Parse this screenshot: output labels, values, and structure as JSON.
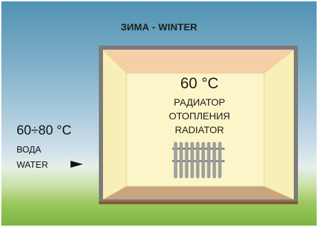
{
  "title": "ЗИМА - WINTER",
  "room": {
    "temperature": "60 °C",
    "radiator_label_ru_line1": "РАДИАТОР",
    "radiator_label_ru_line2": "ОТОПЛЕНИЯ",
    "radiator_label_en": "RADIATOR"
  },
  "water": {
    "temperature_range": "60÷80 °C",
    "label_ru": "ВОДА",
    "label_en": "WATER"
  },
  "colors": {
    "ceiling": "#f6cfa8",
    "floor": "#c9a47e",
    "walls": "#f8f0b8",
    "back_wall": "#fbf5c9",
    "frame": "#7b7b7b",
    "ground_line": "#8a5a2c"
  },
  "icons": [
    "radiator-icon",
    "arrow-right-icon"
  ]
}
